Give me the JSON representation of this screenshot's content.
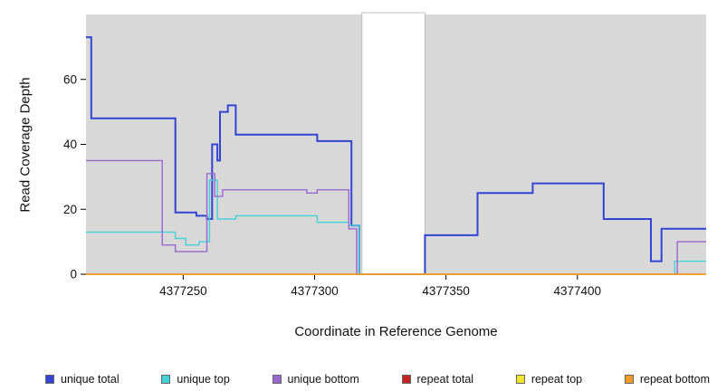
{
  "chart_data": {
    "type": "line",
    "step": true,
    "title": "",
    "xlabel": "Coordinate in Reference Genome",
    "ylabel": "Read Coverage Depth",
    "xlim": [
      4377213,
      4377449
    ],
    "ylim": [
      0,
      80
    ],
    "xticks": [
      4377250,
      4377300,
      4377350,
      4377400
    ],
    "yticks": [
      0,
      20,
      40,
      60
    ],
    "grid": false,
    "panel_color": "#d8d8d8",
    "masked_region": {
      "x0": 4377318,
      "x1": 4377342,
      "color": "#ffffff"
    },
    "legend_position": "bottom",
    "series": [
      {
        "name": "unique total",
        "color": "#3344d4",
        "width": 2,
        "points": [
          [
            4377213,
            73
          ],
          [
            4377215,
            48
          ],
          [
            4377247,
            19
          ],
          [
            4377255,
            18
          ],
          [
            4377259,
            17
          ],
          [
            4377261,
            40
          ],
          [
            4377263,
            35
          ],
          [
            4377264,
            50
          ],
          [
            4377267,
            52
          ],
          [
            4377270,
            43
          ],
          [
            4377301,
            41
          ],
          [
            4377314,
            15
          ],
          [
            4377317,
            0
          ],
          [
            4377342,
            12
          ],
          [
            4377362,
            25
          ],
          [
            4377383,
            28
          ],
          [
            4377410,
            17
          ],
          [
            4377428,
            4
          ],
          [
            4377432,
            14
          ]
        ]
      },
      {
        "name": "unique top",
        "color": "#45d1d8",
        "width": 1.4,
        "points": [
          [
            4377213,
            13
          ],
          [
            4377247,
            11
          ],
          [
            4377251,
            9
          ],
          [
            4377256,
            10
          ],
          [
            4377260,
            29
          ],
          [
            4377263,
            17
          ],
          [
            4377270,
            18
          ],
          [
            4377301,
            16
          ],
          [
            4377313,
            15
          ],
          [
            4377317,
            0
          ],
          [
            4377437,
            4
          ]
        ]
      },
      {
        "name": "unique bottom",
        "color": "#9a66cf",
        "width": 1.4,
        "points": [
          [
            4377213,
            35
          ],
          [
            4377242,
            9
          ],
          [
            4377247,
            7
          ],
          [
            4377259,
            31
          ],
          [
            4377262,
            24
          ],
          [
            4377265,
            26
          ],
          [
            4377297,
            25
          ],
          [
            4377301,
            26
          ],
          [
            4377313,
            14
          ],
          [
            4377316,
            0
          ],
          [
            4377438,
            10
          ]
        ]
      },
      {
        "name": "repeat total",
        "color": "#c22323",
        "width": 1.4,
        "points": [
          [
            4377213,
            0
          ]
        ]
      },
      {
        "name": "repeat top",
        "color": "#f0e52a",
        "width": 1.4,
        "points": [
          [
            4377213,
            0
          ]
        ]
      },
      {
        "name": "repeat bottom",
        "color": "#f59a23",
        "width": 1.4,
        "points": [
          [
            4377213,
            0
          ]
        ]
      }
    ]
  }
}
